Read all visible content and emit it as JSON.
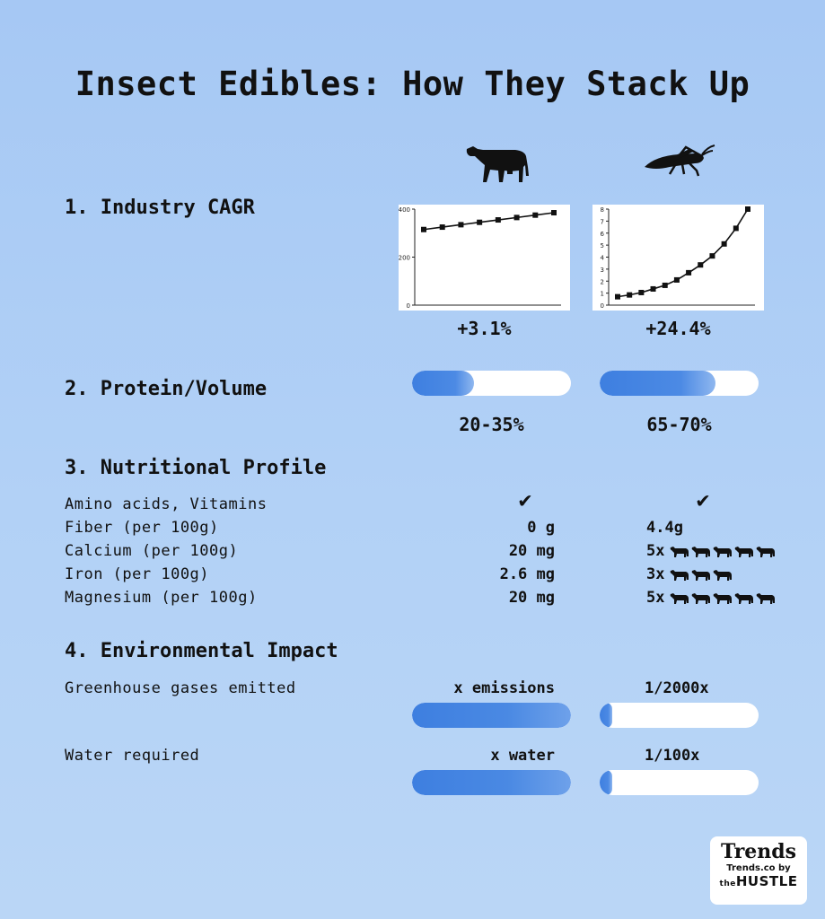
{
  "title": "Insect Edibles: How They Stack Up",
  "sections": {
    "cagr": {
      "heading": "1. Industry CAGR",
      "beef_value": "+3.1%",
      "insect_value": "+24.4%"
    },
    "protein": {
      "heading": "2. Protein/Volume",
      "beef_value": "20-35%",
      "insect_value": "65-70%",
      "beef_fill_fraction": 0.39,
      "insect_fill_fraction": 0.73
    },
    "nutrition": {
      "heading": "3. Nutritional Profile",
      "rows": [
        {
          "label": "Amino acids, Vitamins",
          "beef": "✔",
          "insect": "✔"
        },
        {
          "label": "Fiber (per 100g)",
          "beef": "0 g",
          "insect": "4.4g"
        },
        {
          "label": "Calcium (per 100g)",
          "beef": "20 mg",
          "insect": "5x",
          "insect_cows": 5
        },
        {
          "label": "Iron (per 100g)",
          "beef": "2.6 mg",
          "insect": "3x",
          "insect_cows": 3
        },
        {
          "label": "Magnesium (per 100g)",
          "beef": "20 mg",
          "insect": "5x",
          "insect_cows": 5
        }
      ]
    },
    "environment": {
      "heading": "4. Environmental Impact",
      "rows": [
        {
          "label": "Greenhouse gases emitted",
          "beef": "x emissions",
          "insect": "1/2000x",
          "beef_fill_fraction": 1.0,
          "insect_fill_fraction": 0.0005
        },
        {
          "label": "Water required",
          "beef": "x water",
          "insect": "1/100x",
          "beef_fill_fraction": 1.0,
          "insect_fill_fraction": 0.01
        }
      ]
    }
  },
  "icons": {
    "beef": "cow-icon",
    "insect": "grasshopper-icon",
    "multiplier": "small-cow-icon"
  },
  "colors": {
    "bar_fill": "#3e7fe0",
    "bar_track": "#ffffff",
    "background": "#a6c8f4"
  },
  "logo": {
    "name": "Trends",
    "url_text": "Trends.co by",
    "brand_prefix": "the",
    "brand": "HUSTLE"
  },
  "chart_data": [
    {
      "type": "line",
      "series": [
        {
          "values": [
            315,
            325,
            335,
            345,
            355,
            365,
            375,
            385
          ]
        }
      ],
      "x": [
        1,
        2,
        3,
        4,
        5,
        6,
        7,
        8
      ],
      "ylim": [
        0,
        400
      ],
      "yticks": [
        "0",
        "200",
        "400"
      ],
      "grid": false
    },
    {
      "type": "line",
      "series": [
        {
          "values": [
            0.7,
            0.85,
            1.05,
            1.35,
            1.65,
            2.1,
            2.7,
            3.35,
            4.1,
            5.1,
            6.4,
            8.0
          ]
        }
      ],
      "x": [
        1,
        2,
        3,
        4,
        5,
        6,
        7,
        8,
        9,
        10,
        11,
        12
      ],
      "ylim": [
        0,
        8
      ],
      "yticks": [
        "0",
        "1",
        "2",
        "3",
        "4",
        "5",
        "6",
        "7",
        "8"
      ],
      "grid": false
    }
  ]
}
